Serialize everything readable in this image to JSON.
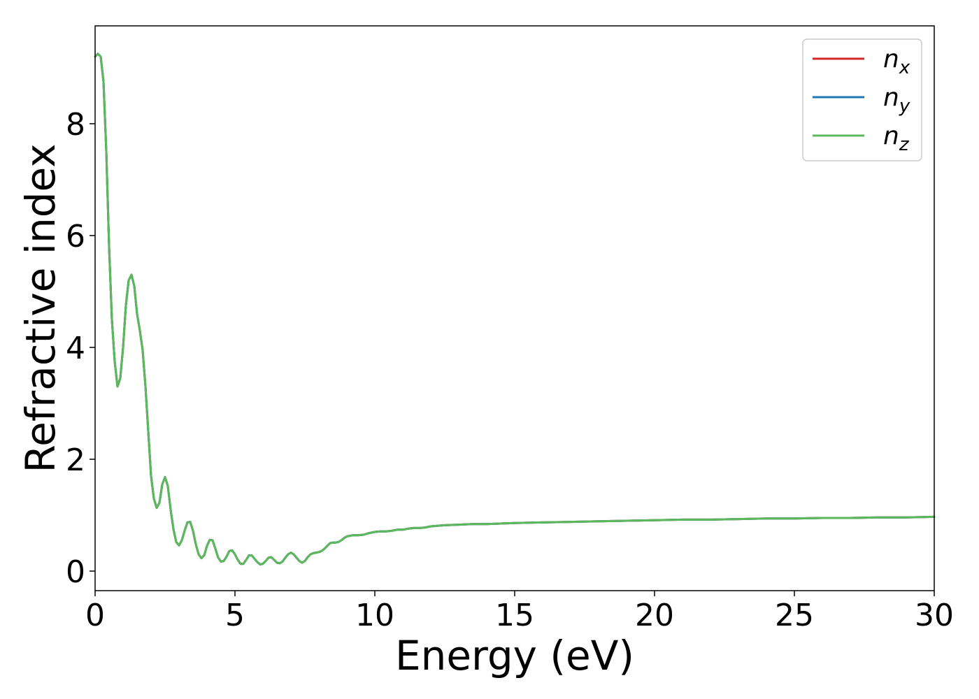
{
  "chart_data": {
    "type": "line",
    "title": "",
    "xlabel": "Energy (eV)",
    "ylabel": "Refractive index",
    "xlim": [
      0,
      30
    ],
    "ylim": [
      -0.35,
      9.75
    ],
    "xticks": [
      0,
      5,
      10,
      15,
      20,
      25,
      30
    ],
    "yticks": [
      0,
      2,
      4,
      6,
      8
    ],
    "grid": false,
    "legend_position": "top-right",
    "x": [
      0.0,
      0.1,
      0.2,
      0.3,
      0.4,
      0.5,
      0.6,
      0.7,
      0.8,
      0.9,
      1.0,
      1.1,
      1.2,
      1.3,
      1.4,
      1.5,
      1.6,
      1.7,
      1.8,
      1.9,
      2.0,
      2.1,
      2.2,
      2.3,
      2.4,
      2.5,
      2.6,
      2.7,
      2.8,
      2.9,
      3.0,
      3.1,
      3.2,
      3.3,
      3.4,
      3.5,
      3.6,
      3.7,
      3.8,
      3.9,
      4.0,
      4.1,
      4.2,
      4.3,
      4.4,
      4.5,
      4.6,
      4.7,
      4.8,
      4.9,
      5.0,
      5.1,
      5.2,
      5.3,
      5.4,
      5.5,
      5.6,
      5.7,
      5.8,
      5.9,
      6.0,
      6.1,
      6.2,
      6.3,
      6.4,
      6.5,
      6.6,
      6.7,
      6.8,
      6.9,
      7.0,
      7.1,
      7.2,
      7.3,
      7.4,
      7.5,
      7.6,
      7.7,
      7.8,
      7.9,
      8.0,
      8.1,
      8.2,
      8.3,
      8.4,
      8.5,
      8.6,
      8.7,
      8.8,
      8.9,
      9.0,
      9.2,
      9.4,
      9.6,
      9.8,
      10.0,
      10.2,
      10.4,
      10.6,
      10.8,
      11.0,
      11.2,
      11.4,
      11.6,
      11.8,
      12.0,
      12.5,
      13.0,
      13.5,
      14.0,
      14.5,
      15.0,
      16.0,
      17.0,
      18.0,
      19.0,
      20.0,
      21.0,
      22.0,
      23.0,
      24.0,
      25.0,
      26.0,
      27.0,
      28.0,
      29.0,
      30.0
    ],
    "series": [
      {
        "name": "n",
        "sub": "x",
        "color": "#d62728",
        "y": [
          9.2,
          9.25,
          9.2,
          8.75,
          7.5,
          5.8,
          4.5,
          3.75,
          3.3,
          3.45,
          4.0,
          4.75,
          5.2,
          5.3,
          5.1,
          4.6,
          4.3,
          3.95,
          3.3,
          2.5,
          1.7,
          1.3,
          1.13,
          1.22,
          1.55,
          1.68,
          1.52,
          1.1,
          0.75,
          0.52,
          0.46,
          0.55,
          0.72,
          0.87,
          0.88,
          0.72,
          0.48,
          0.3,
          0.23,
          0.28,
          0.45,
          0.56,
          0.55,
          0.4,
          0.24,
          0.17,
          0.18,
          0.26,
          0.36,
          0.37,
          0.3,
          0.2,
          0.13,
          0.13,
          0.2,
          0.28,
          0.28,
          0.22,
          0.16,
          0.12,
          0.13,
          0.18,
          0.24,
          0.25,
          0.2,
          0.15,
          0.14,
          0.17,
          0.24,
          0.3,
          0.33,
          0.3,
          0.24,
          0.18,
          0.15,
          0.18,
          0.25,
          0.3,
          0.32,
          0.33,
          0.34,
          0.36,
          0.4,
          0.45,
          0.5,
          0.51,
          0.51,
          0.52,
          0.55,
          0.59,
          0.62,
          0.64,
          0.64,
          0.65,
          0.68,
          0.7,
          0.71,
          0.71,
          0.72,
          0.74,
          0.74,
          0.76,
          0.77,
          0.77,
          0.78,
          0.8,
          0.82,
          0.83,
          0.84,
          0.84,
          0.85,
          0.86,
          0.87,
          0.88,
          0.89,
          0.9,
          0.91,
          0.92,
          0.92,
          0.93,
          0.94,
          0.94,
          0.95,
          0.95,
          0.96,
          0.96,
          0.97
        ]
      },
      {
        "name": "n",
        "sub": "y",
        "color": "#1f77b4",
        "y": [
          9.2,
          9.25,
          9.2,
          8.75,
          7.5,
          5.8,
          4.5,
          3.75,
          3.3,
          3.45,
          4.0,
          4.75,
          5.2,
          5.3,
          5.1,
          4.6,
          4.3,
          3.95,
          3.3,
          2.5,
          1.7,
          1.3,
          1.13,
          1.22,
          1.55,
          1.68,
          1.52,
          1.1,
          0.75,
          0.52,
          0.46,
          0.55,
          0.72,
          0.87,
          0.88,
          0.72,
          0.48,
          0.3,
          0.23,
          0.28,
          0.45,
          0.56,
          0.55,
          0.4,
          0.24,
          0.17,
          0.18,
          0.26,
          0.36,
          0.37,
          0.3,
          0.2,
          0.13,
          0.13,
          0.2,
          0.28,
          0.28,
          0.22,
          0.16,
          0.12,
          0.13,
          0.18,
          0.24,
          0.25,
          0.2,
          0.15,
          0.14,
          0.17,
          0.24,
          0.3,
          0.33,
          0.3,
          0.24,
          0.18,
          0.15,
          0.18,
          0.25,
          0.3,
          0.32,
          0.33,
          0.34,
          0.36,
          0.4,
          0.45,
          0.5,
          0.51,
          0.51,
          0.52,
          0.55,
          0.59,
          0.62,
          0.64,
          0.64,
          0.65,
          0.68,
          0.7,
          0.71,
          0.71,
          0.72,
          0.74,
          0.74,
          0.76,
          0.77,
          0.77,
          0.78,
          0.8,
          0.82,
          0.83,
          0.84,
          0.84,
          0.85,
          0.86,
          0.87,
          0.88,
          0.89,
          0.9,
          0.91,
          0.92,
          0.92,
          0.93,
          0.94,
          0.94,
          0.95,
          0.95,
          0.96,
          0.96,
          0.97
        ]
      },
      {
        "name": "n",
        "sub": "z",
        "color": "#5cb85c",
        "y": [
          9.2,
          9.25,
          9.2,
          8.75,
          7.5,
          5.8,
          4.5,
          3.75,
          3.3,
          3.45,
          4.0,
          4.75,
          5.2,
          5.3,
          5.1,
          4.6,
          4.3,
          3.95,
          3.3,
          2.5,
          1.7,
          1.3,
          1.13,
          1.22,
          1.55,
          1.68,
          1.52,
          1.1,
          0.75,
          0.52,
          0.46,
          0.55,
          0.72,
          0.87,
          0.88,
          0.72,
          0.48,
          0.3,
          0.23,
          0.28,
          0.45,
          0.56,
          0.55,
          0.4,
          0.24,
          0.17,
          0.18,
          0.26,
          0.36,
          0.37,
          0.3,
          0.2,
          0.13,
          0.13,
          0.2,
          0.28,
          0.28,
          0.22,
          0.16,
          0.12,
          0.13,
          0.18,
          0.24,
          0.25,
          0.2,
          0.15,
          0.14,
          0.17,
          0.24,
          0.3,
          0.33,
          0.3,
          0.24,
          0.18,
          0.15,
          0.18,
          0.25,
          0.3,
          0.32,
          0.33,
          0.34,
          0.36,
          0.4,
          0.45,
          0.5,
          0.51,
          0.51,
          0.52,
          0.55,
          0.59,
          0.62,
          0.64,
          0.64,
          0.65,
          0.68,
          0.7,
          0.71,
          0.71,
          0.72,
          0.74,
          0.74,
          0.76,
          0.77,
          0.77,
          0.78,
          0.8,
          0.82,
          0.83,
          0.84,
          0.84,
          0.85,
          0.86,
          0.87,
          0.88,
          0.89,
          0.9,
          0.91,
          0.92,
          0.92,
          0.93,
          0.94,
          0.94,
          0.95,
          0.95,
          0.96,
          0.96,
          0.97
        ]
      }
    ]
  }
}
